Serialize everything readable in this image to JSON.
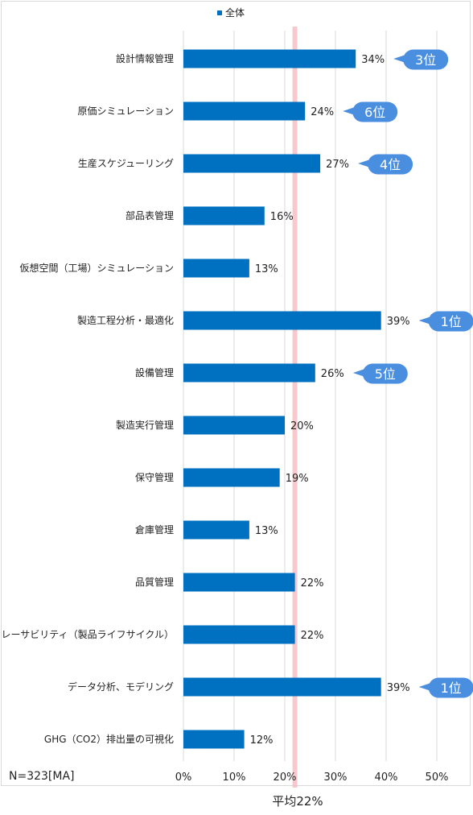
{
  "chart_data": {
    "type": "bar",
    "orientation": "horizontal",
    "legend": {
      "label": "全体",
      "position": "top",
      "color": "#0070c0"
    },
    "categories": [
      "設計情報管理",
      "原価シミュレーション",
      "生産スケジューリング",
      "部品表管理",
      "仮想空間（工場）シミュレーション",
      "製造工程分析・最適化",
      "設備管理",
      "製造実行管理",
      "保守管理",
      "倉庫管理",
      "品質管理",
      "トレーサビリティ（製品ライフサイクル）",
      "データ分析、モデリング",
      "GHG（CO2）排出量の可視化"
    ],
    "series": [
      {
        "values": [
          34,
          24,
          27,
          16,
          13,
          39,
          26,
          20,
          19,
          13,
          22,
          22,
          39,
          12
        ],
        "value_labels": [
          "34%",
          "24%",
          "27%",
          "16%",
          "13%",
          "39%",
          "26%",
          "20%",
          "19%",
          "13%",
          "22%",
          "22%",
          "39%",
          "12%"
        ]
      }
    ],
    "rank_callouts": [
      {
        "category_index": 0,
        "label": "3位"
      },
      {
        "category_index": 1,
        "label": "6位"
      },
      {
        "category_index": 2,
        "label": "4位"
      },
      {
        "category_index": 5,
        "label": "1位"
      },
      {
        "category_index": 6,
        "label": "5位"
      },
      {
        "category_index": 12,
        "label": "1位"
      }
    ],
    "xlim": [
      0,
      50
    ],
    "x_ticks": [
      0,
      10,
      20,
      30,
      40,
      50
    ],
    "x_tick_labels": [
      "0%",
      "10%",
      "20%",
      "30%",
      "40%",
      "50%"
    ],
    "grid": true,
    "average": {
      "value": 22,
      "label": "平均22%",
      "color": "#f4b7bb"
    },
    "note": "N=323[MA]",
    "colors": {
      "bar": "#0070c0",
      "callout": "#4a8ee0",
      "grid": "#d9d9d9"
    }
  }
}
